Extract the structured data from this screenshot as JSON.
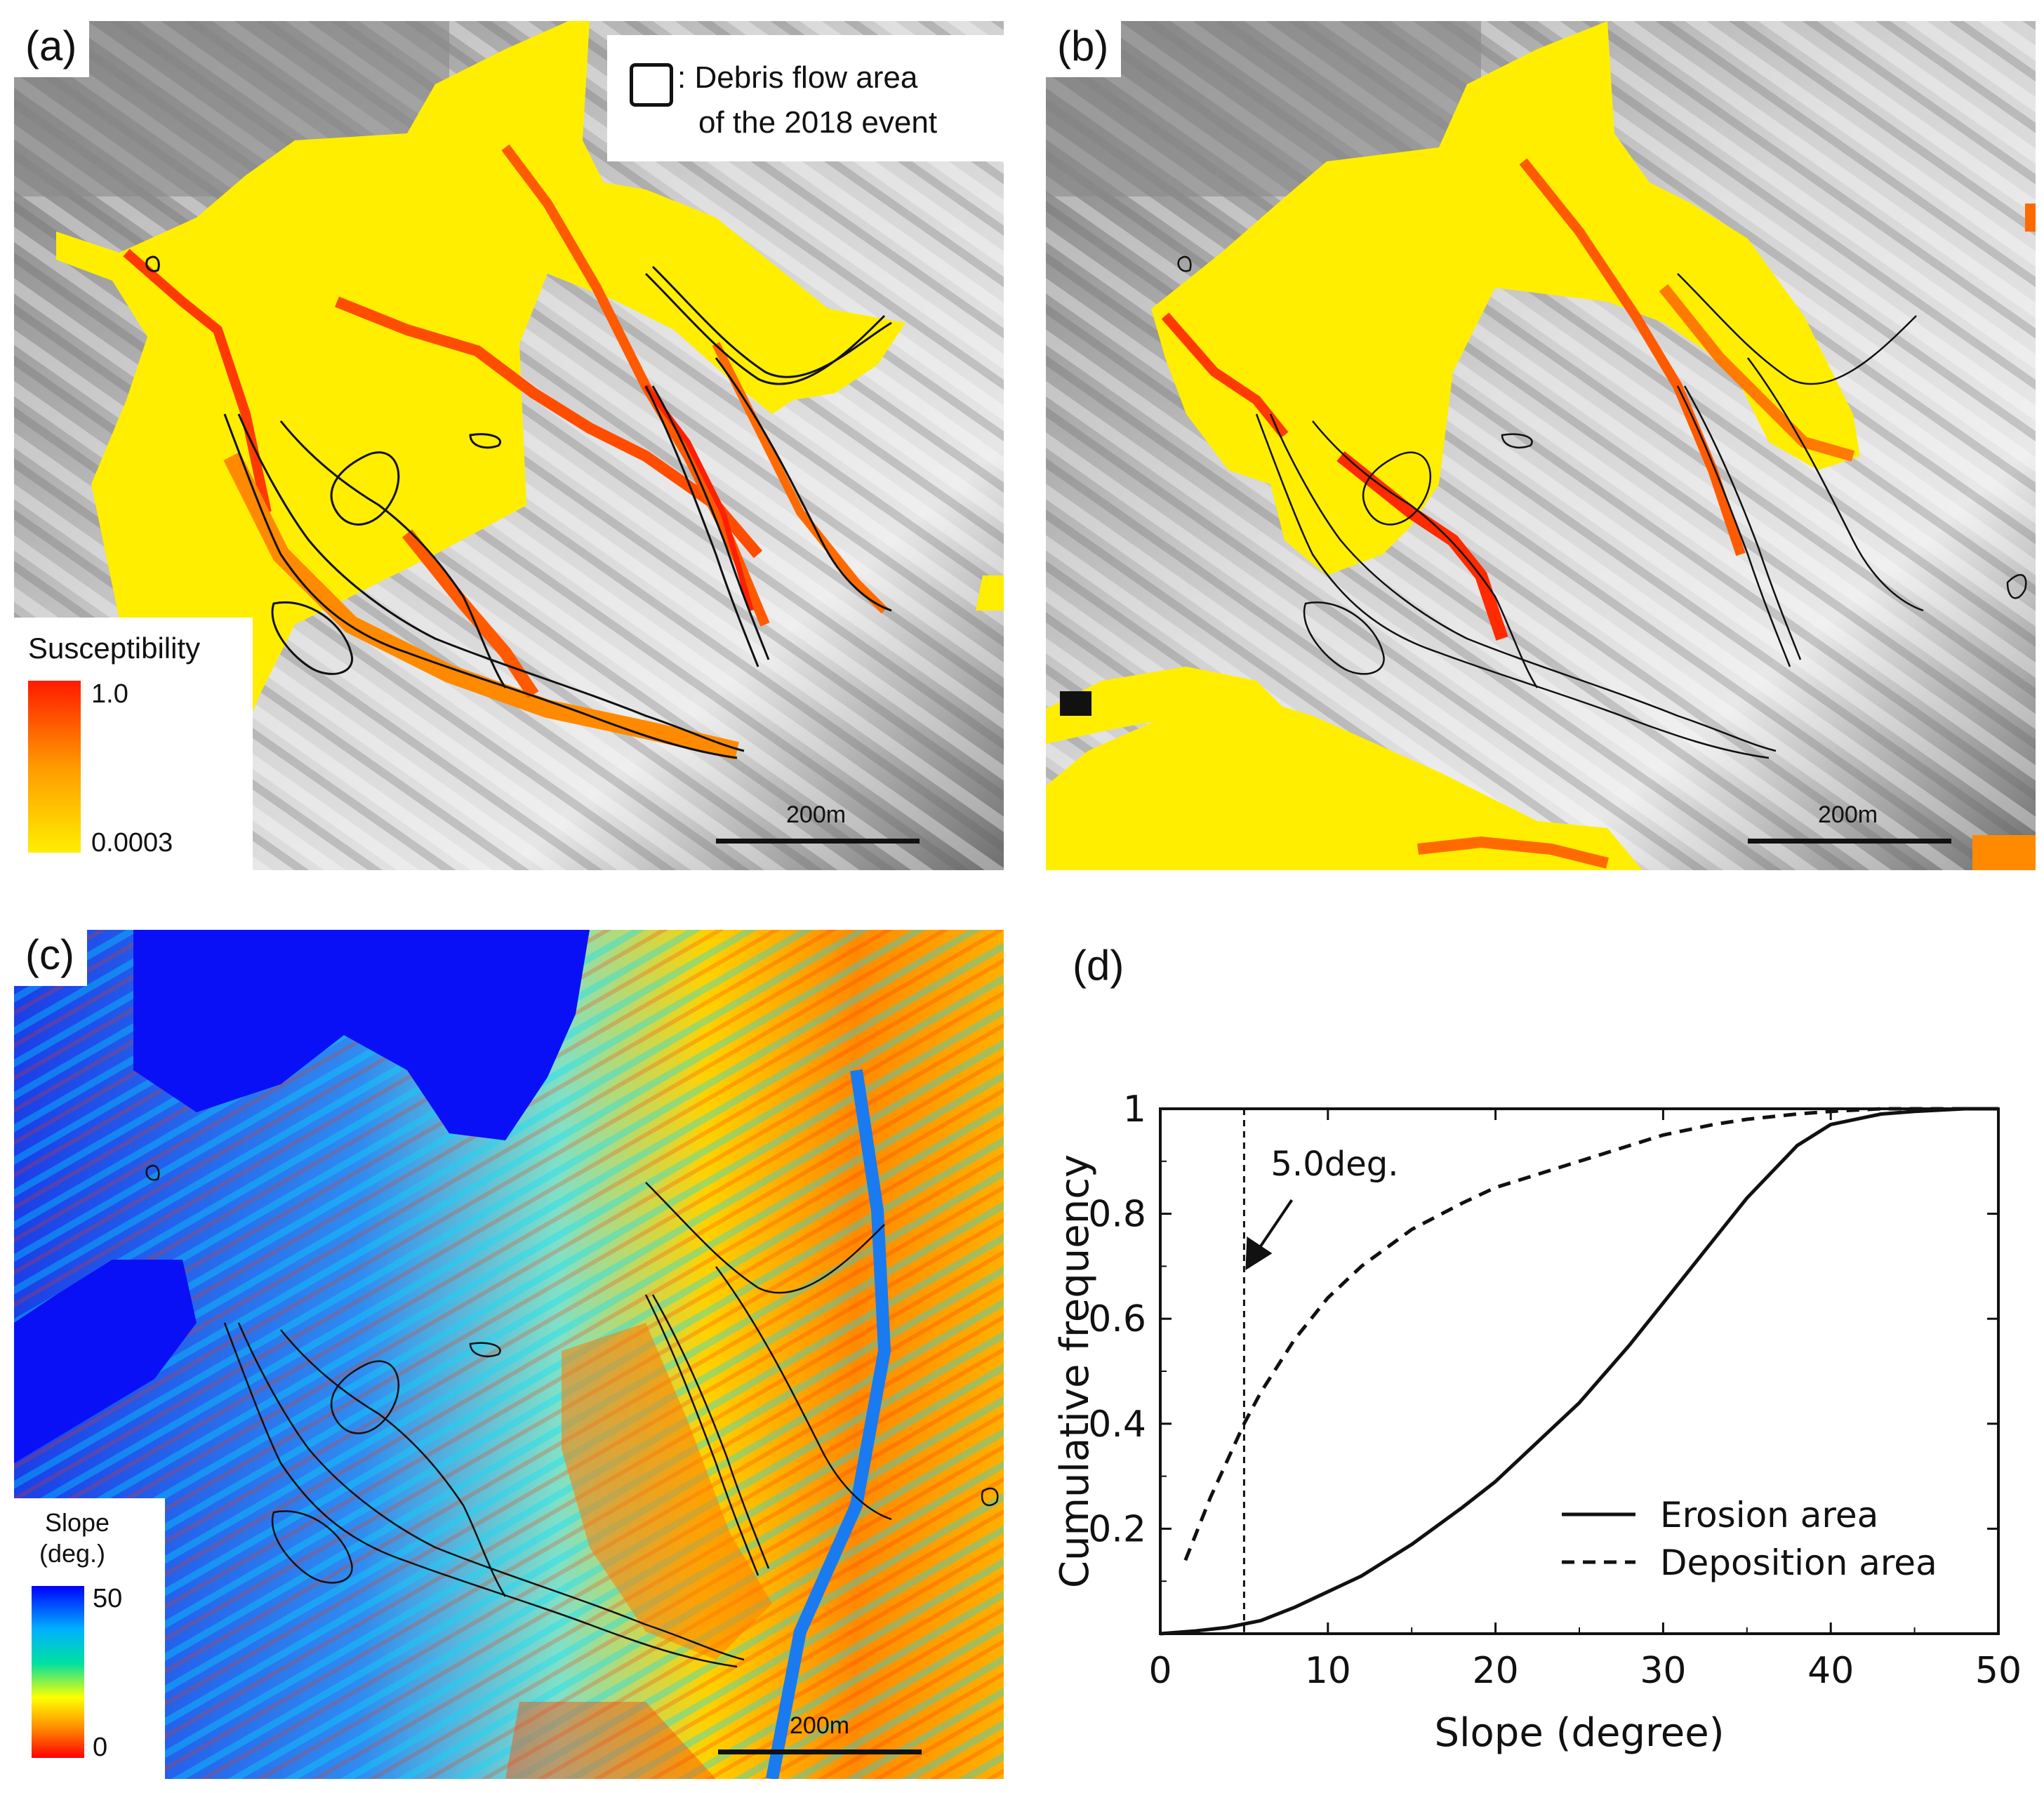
{
  "figure": {
    "panel_a": {
      "label": "(a)",
      "legend_line1": ": Debris flow area",
      "legend_line2": "of the 2018 event",
      "colorbar_title": "Susceptibility",
      "colorbar_max": "1.0",
      "colorbar_min": "0.0003",
      "scale_label": "200m"
    },
    "panel_b": {
      "label": "(b)",
      "scale_label": "200m"
    },
    "panel_c": {
      "label": "(c)",
      "colorbar_title_line1": "Slope",
      "colorbar_title_line2": "(deg.)",
      "colorbar_max": "50",
      "colorbar_min": "0",
      "scale_label": "200m"
    },
    "panel_d": {
      "label": "(d)"
    }
  },
  "colors": {
    "susceptibility_low": "#ffee00",
    "susceptibility_mid": "#ff9a00",
    "susceptibility_high": "#ff1a00",
    "slope_high": "#0000ff",
    "slope_mid": "#00e0ff",
    "slope_low": "#ff0000"
  },
  "chart_data": {
    "type": "line",
    "xlabel": "Slope (degree)",
    "ylabel": "Cumulative frequency",
    "xlim": [
      0,
      50
    ],
    "ylim": [
      0,
      1
    ],
    "xticks": [
      "0",
      "10",
      "20",
      "30",
      "40",
      "50"
    ],
    "yticks": [
      "0.2",
      "0.4",
      "0.6",
      "0.8",
      "1"
    ],
    "legend_position": "bottom-right",
    "grid": false,
    "series": [
      {
        "name": "Erosion area",
        "style": "solid",
        "x": [
          0,
          2,
          4,
          6,
          8,
          10,
          12,
          15,
          18,
          20,
          23,
          25,
          28,
          30,
          33,
          35,
          38,
          40,
          43,
          45,
          48,
          50
        ],
        "y": [
          0.0,
          0.005,
          0.012,
          0.025,
          0.05,
          0.08,
          0.11,
          0.17,
          0.24,
          0.29,
          0.38,
          0.44,
          0.55,
          0.63,
          0.75,
          0.83,
          0.93,
          0.97,
          0.99,
          0.995,
          1.0,
          1.0
        ]
      },
      {
        "name": "Deposition area",
        "style": "dashed",
        "x": [
          1.5,
          2,
          3,
          4,
          5,
          6,
          7,
          8,
          10,
          12,
          15,
          18,
          20,
          23,
          25,
          28,
          30,
          33,
          35,
          38,
          40,
          43,
          45,
          48,
          50
        ],
        "y": [
          0.14,
          0.18,
          0.26,
          0.33,
          0.4,
          0.46,
          0.51,
          0.56,
          0.64,
          0.7,
          0.77,
          0.82,
          0.85,
          0.88,
          0.9,
          0.93,
          0.95,
          0.97,
          0.98,
          0.99,
          0.995,
          1.0,
          1.0,
          1.0,
          1.0
        ]
      }
    ],
    "threshold": {
      "x": 5.0,
      "label": "5.0deg."
    }
  }
}
